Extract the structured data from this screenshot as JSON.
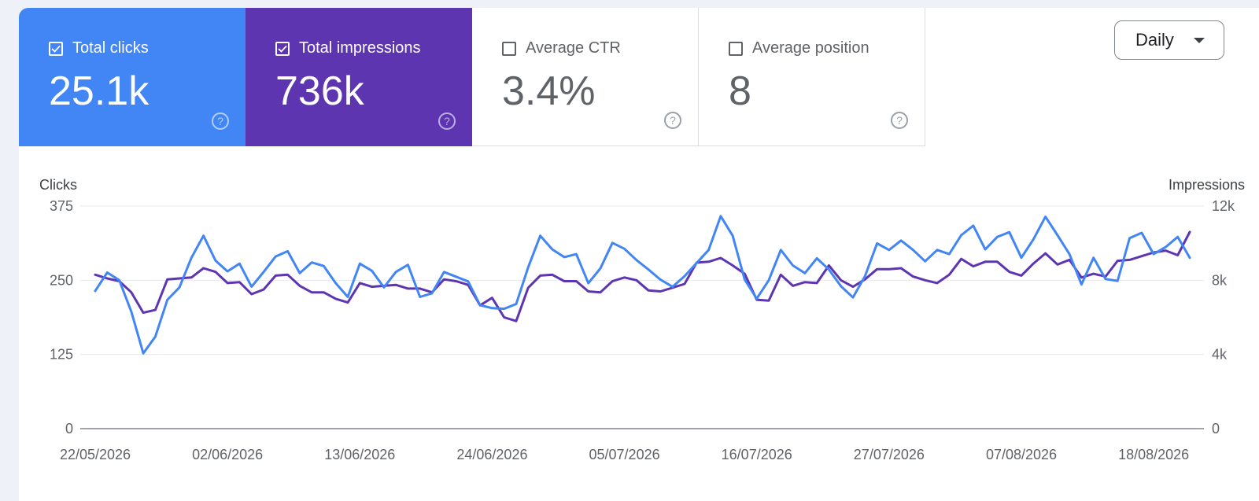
{
  "cards": [
    {
      "label": "Total clicks",
      "value": "25.1k",
      "checked": true,
      "color": "#4285f4"
    },
    {
      "label": "Total impressions",
      "value": "736k",
      "checked": true,
      "color": "#5e35b1"
    },
    {
      "label": "Average CTR",
      "value": "3.4%",
      "checked": false
    },
    {
      "label": "Average position",
      "value": "8",
      "checked": false
    }
  ],
  "dropdown": {
    "selected": "Daily"
  },
  "icons": {
    "help": "help-circle-icon",
    "checkbox": "checkbox-icon",
    "caret": "caret-down-icon"
  },
  "chart_data": {
    "type": "line",
    "ylabel_left": "Clicks",
    "ylabel_right": "Impressions",
    "y_left_ticks": [
      "375",
      "250",
      "125",
      "0"
    ],
    "y_right_ticks": [
      "12k",
      "8k",
      "4k",
      "0"
    ],
    "ylim_left": [
      0,
      375
    ],
    "ylim_right": [
      0,
      12000
    ],
    "x_tick_labels": [
      "22/05/2026",
      "02/06/2026",
      "13/06/2026",
      "24/06/2026",
      "05/07/2026",
      "16/07/2026",
      "27/07/2026",
      "07/08/2026",
      "18/08/2026"
    ],
    "grid": true,
    "series": [
      {
        "name": "Total clicks",
        "axis": "left",
        "color": "#4285f4",
        "values": [
          232,
          263,
          250,
          197,
          127,
          155,
          217,
          238,
          288,
          325,
          283,
          265,
          278,
          239,
          264,
          290,
          299,
          262,
          280,
          274,
          245,
          222,
          278,
          266,
          238,
          264,
          276,
          222,
          228,
          264,
          256,
          248,
          208,
          203,
          202,
          210,
          272,
          325,
          302,
          289,
          294,
          245,
          270,
          313,
          303,
          284,
          268,
          251,
          239,
          257,
          279,
          301,
          358,
          325,
          251,
          219,
          250,
          301,
          275,
          262,
          287,
          268,
          240,
          221,
          257,
          312,
          301,
          317,
          301,
          282,
          301,
          294,
          326,
          342,
          302,
          323,
          331,
          288,
          319,
          357,
          326,
          294,
          243,
          288,
          252,
          249,
          321,
          330,
          294,
          306,
          323,
          288
        ]
      },
      {
        "name": "Total impressions",
        "axis": "right",
        "color": "#5e35b1",
        "values": [
          8300,
          8100,
          7950,
          7350,
          6250,
          6400,
          8050,
          8100,
          8150,
          8650,
          8450,
          7850,
          7900,
          7250,
          7500,
          8250,
          8300,
          7700,
          7350,
          7350,
          7000,
          6800,
          7850,
          7650,
          7700,
          7750,
          7550,
          7550,
          7350,
          8050,
          7950,
          7750,
          6650,
          7050,
          6000,
          5800,
          7600,
          8250,
          8300,
          7950,
          7950,
          7400,
          7350,
          7950,
          8150,
          8000,
          7450,
          7400,
          7600,
          7800,
          8950,
          9000,
          9200,
          8800,
          8350,
          6950,
          6900,
          8300,
          7700,
          7900,
          7850,
          8800,
          8000,
          7650,
          8050,
          8600,
          8600,
          8650,
          8200,
          8000,
          7850,
          8300,
          9150,
          8750,
          9000,
          9000,
          8450,
          8250,
          8900,
          9450,
          8850,
          9100,
          8150,
          8350,
          8200,
          9050,
          9100,
          9300,
          9500,
          9600,
          9350,
          10600
        ]
      }
    ]
  }
}
